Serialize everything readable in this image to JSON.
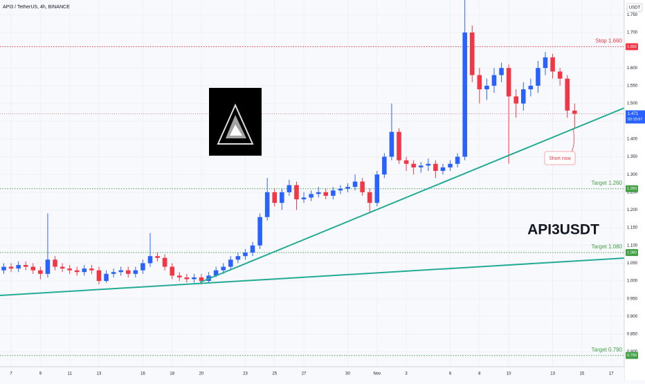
{
  "header": {
    "title": "API3 / TetherUS, 4h, BINANCE",
    "currency": "USDT"
  },
  "chart_data": {
    "type": "candlestick",
    "symbol_label": "API3USDT",
    "up_color": "#2962ff",
    "down_color": "#f23645",
    "x": [
      6.5,
      7,
      7.5,
      8,
      8.5,
      9,
      9.5,
      10,
      10.5,
      11,
      11.5,
      12,
      12.5,
      13,
      13.5,
      14,
      14.5,
      15,
      15.5,
      16,
      16.5,
      17,
      17.5,
      18,
      18.5,
      19,
      19.5,
      20,
      20.5,
      21,
      21.5,
      22,
      22.5,
      23,
      23.5,
      24,
      24.5,
      25,
      25.5,
      26,
      26.5,
      27,
      27.5,
      28,
      28.5,
      29,
      29.5,
      30,
      30.5,
      31,
      31.5,
      32,
      32.5,
      33,
      33.5,
      34,
      34.5,
      35,
      35.5,
      36,
      36.5,
      37,
      37.5,
      38,
      38.5,
      39,
      39.5,
      40,
      40.5,
      41,
      41.5,
      42,
      42.5,
      43,
      43.5,
      44,
      44.5,
      45,
      45.5
    ],
    "open": [
      1.03,
      1.04,
      1.035,
      1.045,
      1.04,
      1.03,
      1.02,
      1.06,
      1.04,
      1.035,
      1.03,
      1.025,
      1.035,
      1.03,
      1.0,
      1.02,
      1.025,
      1.03,
      1.02,
      1.03,
      1.05,
      1.07,
      1.065,
      1.04,
      1.015,
      1.01,
      1.005,
      1.01,
      1.0,
      1.015,
      1.03,
      1.04,
      1.06,
      1.07,
      1.08,
      1.1,
      1.18,
      1.25,
      1.22,
      1.25,
      1.27,
      1.23,
      1.235,
      1.245,
      1.25,
      1.24,
      1.255,
      1.26,
      1.265,
      1.28,
      1.25,
      1.22,
      1.3,
      1.35,
      1.42,
      1.34,
      1.33,
      1.32,
      1.325,
      1.33,
      1.31,
      1.32,
      1.33,
      1.35,
      1.7,
      1.58,
      1.54,
      1.55,
      1.58,
      1.6,
      1.52,
      1.5,
      1.54,
      1.55,
      1.6,
      1.63,
      1.59,
      1.57,
      1.48
    ],
    "high": [
      1.05,
      1.05,
      1.055,
      1.055,
      1.05,
      1.04,
      1.19,
      1.07,
      1.05,
      1.045,
      1.04,
      1.045,
      1.045,
      1.04,
      1.03,
      1.035,
      1.04,
      1.04,
      1.04,
      1.06,
      1.135,
      1.08,
      1.075,
      1.05,
      1.025,
      1.02,
      1.02,
      1.02,
      1.025,
      1.04,
      1.05,
      1.07,
      1.08,
      1.09,
      1.11,
      1.19,
      1.29,
      1.26,
      1.26,
      1.285,
      1.28,
      1.25,
      1.255,
      1.265,
      1.26,
      1.265,
      1.27,
      1.275,
      1.3,
      1.29,
      1.26,
      1.31,
      1.36,
      1.5,
      1.43,
      1.35,
      1.34,
      1.335,
      1.345,
      1.34,
      1.33,
      1.34,
      1.36,
      1.8,
      1.72,
      1.6,
      1.57,
      1.6,
      1.615,
      1.61,
      1.54,
      1.56,
      1.57,
      1.62,
      1.645,
      1.64,
      1.6,
      1.58,
      1.5
    ],
    "low": [
      1.02,
      1.025,
      1.025,
      1.03,
      1.02,
      1.005,
      1.01,
      1.03,
      1.025,
      1.02,
      1.015,
      1.015,
      1.02,
      0.99,
      0.995,
      1.01,
      1.015,
      1.01,
      1.01,
      1.02,
      1.04,
      1.055,
      1.03,
      1.005,
      1.0,
      0.995,
      0.995,
      0.99,
      0.995,
      1.01,
      1.02,
      1.03,
      1.05,
      1.06,
      1.07,
      1.09,
      1.17,
      1.21,
      1.2,
      1.24,
      1.2,
      1.22,
      1.225,
      1.235,
      1.23,
      1.23,
      1.245,
      1.25,
      1.255,
      1.24,
      1.19,
      1.21,
      1.29,
      1.34,
      1.33,
      1.31,
      1.3,
      1.305,
      1.31,
      1.29,
      1.3,
      1.31,
      1.32,
      1.34,
      1.56,
      1.5,
      1.51,
      1.53,
      1.56,
      1.33,
      1.46,
      1.48,
      1.52,
      1.53,
      1.58,
      1.57,
      1.55,
      1.46,
      1.43
    ],
    "close": [
      1.04,
      1.035,
      1.045,
      1.04,
      1.03,
      1.02,
      1.06,
      1.04,
      1.035,
      1.03,
      1.025,
      1.035,
      1.03,
      1.0,
      1.02,
      1.025,
      1.03,
      1.02,
      1.03,
      1.05,
      1.07,
      1.065,
      1.04,
      1.015,
      1.01,
      1.005,
      1.01,
      1.0,
      1.015,
      1.03,
      1.04,
      1.06,
      1.07,
      1.08,
      1.1,
      1.18,
      1.25,
      1.22,
      1.25,
      1.27,
      1.23,
      1.235,
      1.245,
      1.25,
      1.24,
      1.255,
      1.26,
      1.265,
      1.28,
      1.25,
      1.22,
      1.3,
      1.35,
      1.42,
      1.34,
      1.33,
      1.32,
      1.325,
      1.33,
      1.31,
      1.32,
      1.33,
      1.35,
      1.7,
      1.58,
      1.54,
      1.55,
      1.58,
      1.6,
      1.52,
      1.5,
      1.54,
      1.55,
      1.6,
      1.63,
      1.59,
      1.57,
      1.48,
      1.471
    ],
    "xlim": [
      6.24,
      48.89
    ],
    "xticks": [
      7,
      9,
      11,
      13,
      16,
      18,
      20,
      23,
      25,
      27,
      30,
      {
        "value": 32,
        "label": "Nov"
      },
      {
        "value": 34,
        "label": "3"
      },
      {
        "value": 37,
        "label": "6"
      },
      {
        "value": 39,
        "label": "8"
      },
      {
        "value": 41,
        "label": "10"
      },
      {
        "value": 44,
        "label": "13"
      },
      {
        "value": 46,
        "label": "15"
      },
      {
        "value": 48,
        "label": "17"
      }
    ],
    "ylim": [
      0.7584,
      1.7916
    ],
    "yticks": [
      {
        "value": 0.8,
        "label": "0.800"
      },
      {
        "value": 0.85,
        "label": "0.850"
      },
      {
        "value": 0.9,
        "label": "0.900"
      },
      {
        "value": 0.95,
        "label": "0.950"
      },
      {
        "value": 1.0,
        "label": "1.000"
      },
      {
        "value": 1.05,
        "label": "1.050"
      },
      {
        "value": 1.1,
        "label": "1.100"
      },
      {
        "value": 1.15,
        "label": "1.150"
      },
      {
        "value": 1.2,
        "label": "1.200"
      },
      {
        "value": 1.25,
        "label": "1.250"
      },
      {
        "value": 1.3,
        "label": "1.300"
      },
      {
        "value": 1.35,
        "label": "1.350"
      },
      {
        "value": 1.4,
        "label": "1.400"
      },
      {
        "value": 1.45,
        "label": "1.450"
      },
      {
        "value": 1.5,
        "label": "1.500"
      },
      {
        "value": 1.55,
        "label": "1.550"
      },
      {
        "value": 1.6,
        "label": "1.600"
      },
      {
        "value": 1.7,
        "label": "1.700"
      },
      {
        "value": 1.75,
        "label": "1.750"
      }
    ],
    "grid": true,
    "levels": [
      {
        "label": "Stop 1.660",
        "value": 1.66,
        "tag": "1.660",
        "color": "#f23645"
      },
      {
        "label": "Target 1.260",
        "value": 1.26,
        "tag": "1.260",
        "color": "#43a047"
      },
      {
        "label": "Target 1.080",
        "value": 1.08,
        "tag": "1.080",
        "color": "#43a047"
      },
      {
        "label": "Target 0.790",
        "value": 0.79,
        "tag": "0.790",
        "color": "#43a047"
      }
    ],
    "last_price": {
      "value": 1.471,
      "label": "1.471",
      "countdown": "02:15:57"
    },
    "callout": "Short now"
  }
}
